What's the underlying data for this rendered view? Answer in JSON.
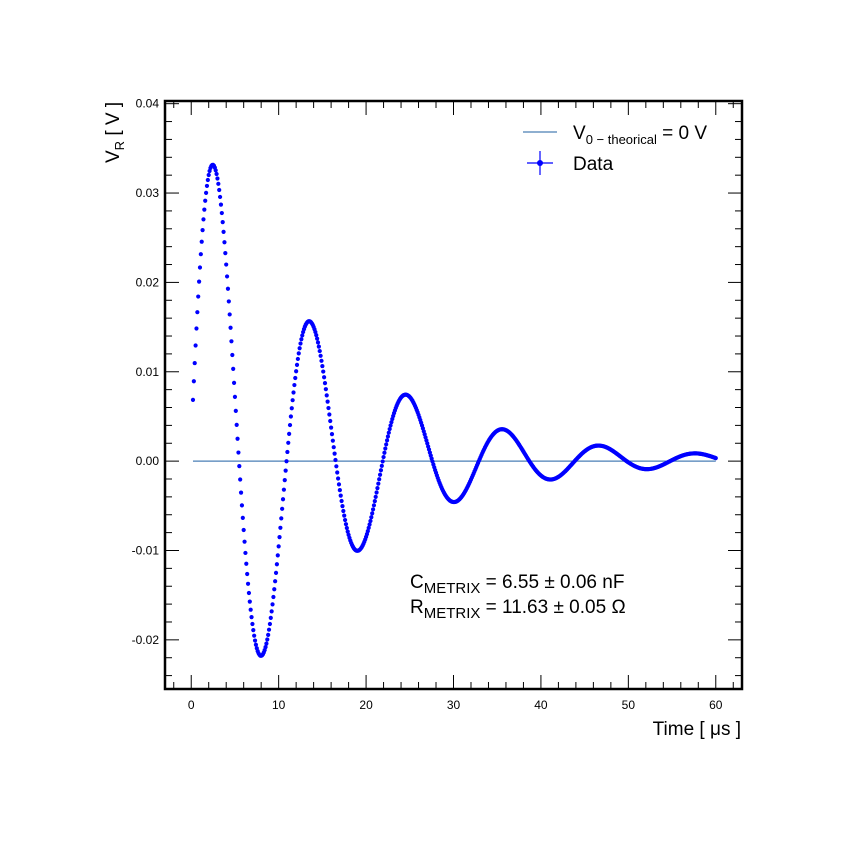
{
  "chart_data": {
    "type": "scatter",
    "title": "",
    "xlabel": "Time [ μs ]",
    "ylabel": {
      "main": "V",
      "sub": "R",
      "unit": " [ V ]"
    },
    "xlim": [
      -3,
      63
    ],
    "ylim": [
      -0.0255,
      0.0403
    ],
    "xticks": [
      0,
      10,
      20,
      30,
      40,
      50,
      60
    ],
    "xtick_labels": [
      "0",
      "10",
      "20",
      "30",
      "40",
      "50",
      "60"
    ],
    "yticks": [
      -0.02,
      -0.01,
      0.0,
      0.01,
      0.02,
      0.03,
      0.04
    ],
    "ytick_labels": [
      "-0.02",
      "-0.01",
      "0.00",
      "0.01",
      "0.02",
      "0.03",
      "0.04"
    ],
    "grid": false,
    "legend_position": "top-right",
    "series": [
      {
        "name": "V0-theorical = 0 V",
        "legend": {
          "main": "V",
          "sub": "0 − theorical",
          "rest": " = 0 V"
        },
        "kind": "line",
        "color": "#4a7fb5",
        "x": [
          0.2,
          60.0
        ],
        "y": [
          0.0,
          0.0
        ]
      },
      {
        "name": "Data",
        "legend": {
          "main": "Data"
        },
        "kind": "points",
        "color": "#0000ff",
        "model": {
          "x_start": 0.2,
          "x_end": 60.0,
          "step": 0.1,
          "amplitude": 0.0389,
          "decay_time_us": 14.5,
          "angular_frequency_rad_per_us": 0.5695,
          "phase_rad": 0.05,
          "offset": 0.0006
        },
        "x_marks": [
          2.9,
          8.3,
          13.8,
          19.4,
          25.0,
          30.4,
          35.9,
          41.2,
          46.9,
          52.3
        ],
        "y_marks": [
          0.037,
          -0.022,
          0.0153,
          -0.0085,
          0.0068,
          -0.003,
          0.0033,
          -0.0008,
          0.0019,
          0.0001
        ]
      }
    ],
    "annotations": [
      {
        "main": "C",
        "sub": "METRIX",
        "rest": " = 6.55 ± 0.06 nF"
      },
      {
        "main": "R",
        "sub": "METRIX",
        "rest": " = 11.63 ± 0.05 Ω"
      }
    ]
  }
}
